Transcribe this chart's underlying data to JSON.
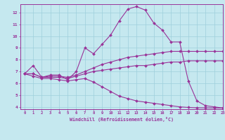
{
  "xlabel": "Windchill (Refroidissement éolien,°C)",
  "ylabel": "",
  "xlim": [
    -0.5,
    23
  ],
  "ylim": [
    3.8,
    12.7
  ],
  "xticks": [
    0,
    1,
    2,
    3,
    4,
    5,
    6,
    7,
    8,
    9,
    10,
    11,
    12,
    13,
    14,
    15,
    16,
    17,
    18,
    19,
    20,
    21,
    22,
    23
  ],
  "yticks": [
    4,
    5,
    6,
    7,
    8,
    9,
    10,
    11,
    12
  ],
  "bg_color": "#c5e8ef",
  "grid_color": "#9ecfdb",
  "line_color": "#993399",
  "line1_x": [
    0,
    1,
    2,
    3,
    4,
    5,
    6,
    7,
    8,
    9,
    10,
    11,
    12,
    13,
    14,
    15,
    16,
    17,
    18,
    19,
    20,
    21,
    22,
    23
  ],
  "line1_y": [
    6.8,
    7.5,
    6.5,
    6.7,
    6.7,
    6.3,
    7.0,
    9.0,
    8.5,
    9.3,
    10.1,
    11.3,
    12.3,
    12.5,
    12.2,
    11.1,
    10.5,
    9.5,
    9.5,
    6.2,
    4.5,
    4.1,
    4.0,
    3.9
  ],
  "line2_x": [
    0,
    1,
    2,
    3,
    4,
    5,
    6,
    7,
    8,
    9,
    10,
    11,
    12,
    13,
    14,
    15,
    16,
    17,
    18,
    19,
    20,
    21,
    22,
    23
  ],
  "line2_y": [
    6.8,
    6.8,
    6.5,
    6.6,
    6.6,
    6.5,
    6.7,
    7.0,
    7.3,
    7.6,
    7.8,
    8.0,
    8.2,
    8.3,
    8.4,
    8.5,
    8.6,
    8.7,
    8.7,
    8.7,
    8.7,
    8.7,
    8.7,
    8.7
  ],
  "line3_x": [
    0,
    1,
    2,
    3,
    4,
    5,
    6,
    7,
    8,
    9,
    10,
    11,
    12,
    13,
    14,
    15,
    16,
    17,
    18,
    19,
    20,
    21,
    22,
    23
  ],
  "line3_y": [
    6.8,
    6.8,
    6.5,
    6.5,
    6.5,
    6.4,
    6.6,
    6.8,
    7.0,
    7.1,
    7.2,
    7.3,
    7.4,
    7.5,
    7.5,
    7.6,
    7.7,
    7.8,
    7.8,
    7.9,
    7.9,
    7.9,
    7.9,
    7.9
  ],
  "line4_x": [
    0,
    1,
    2,
    3,
    4,
    5,
    6,
    7,
    8,
    9,
    10,
    11,
    12,
    13,
    14,
    15,
    16,
    17,
    18,
    19,
    20,
    21,
    22,
    23
  ],
  "line4_y": [
    6.8,
    6.6,
    6.4,
    6.4,
    6.3,
    6.2,
    6.3,
    6.4,
    6.1,
    5.7,
    5.3,
    4.9,
    4.7,
    4.5,
    4.4,
    4.3,
    4.2,
    4.1,
    4.0,
    3.95,
    3.92,
    3.91,
    3.9,
    3.9
  ]
}
